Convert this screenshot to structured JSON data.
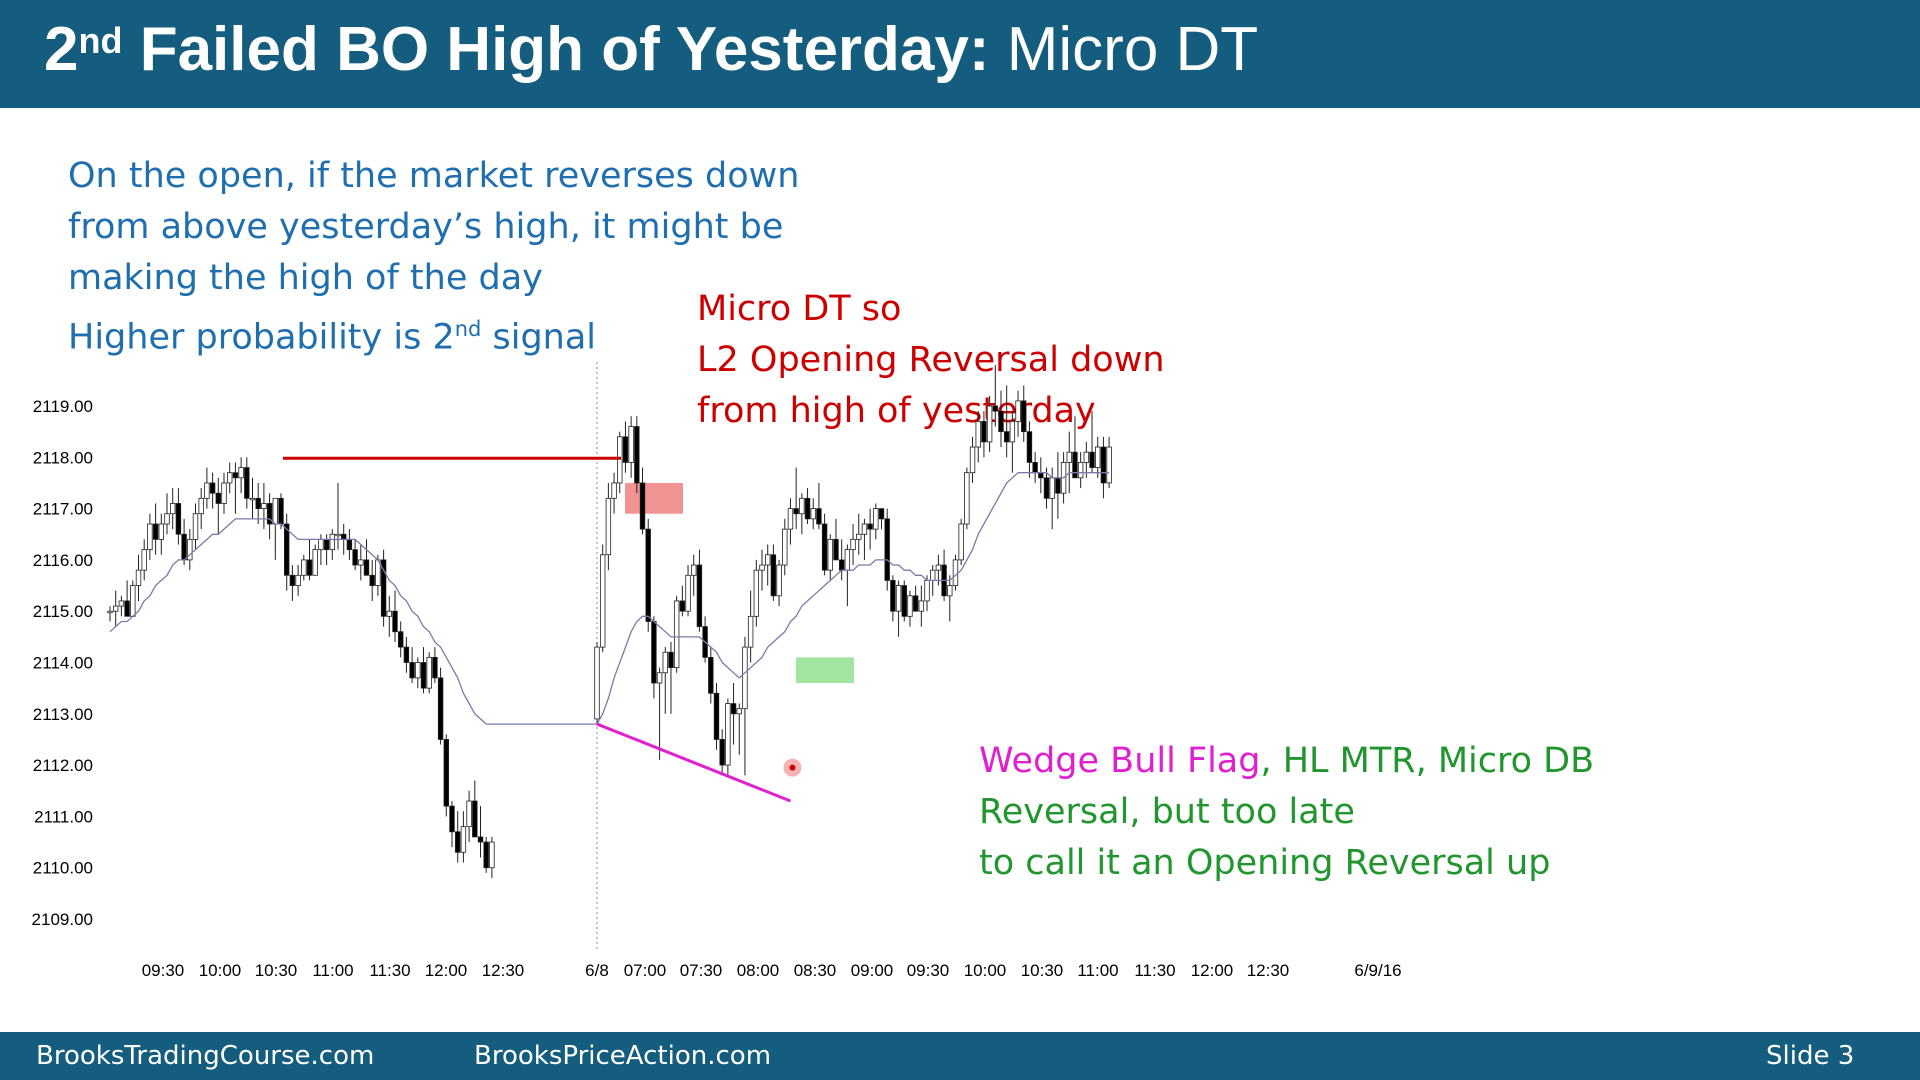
{
  "slide": {
    "title_main": "2",
    "title_sup": "nd",
    "title_bold_rest": " Failed BO High of Yesterday:",
    "title_light": " Micro DT",
    "footer_left": "BrooksTradingCourse.com",
    "footer_center": "BrooksPriceAction.com",
    "footer_right": "Slide  3"
  },
  "notes": {
    "blue": {
      "line1": "On the open, if the market reverses down",
      "line2": "from above yesterday’s high, it might be",
      "line3": "making the high of the day",
      "line4_a": "Higher probability is 2",
      "line4_sup": "nd",
      "line4_b": " signal"
    },
    "red": {
      "line1": "Micro DT so",
      "line2": "L2 Opening Reversal down",
      "line3": "from high of yesterday"
    },
    "green": {
      "part_magenta": "Wedge Bull Flag",
      "part_green": ", HL MTR, Micro DB",
      "line2": "Reversal, but too late",
      "line3": "to call it an Opening Reversal up"
    }
  },
  "colors": {
    "header_bg": "#155d7e",
    "blue_text": "#1f6fb0",
    "red_text": "#cc0000",
    "green_text": "#22962e",
    "magenta": "#e020d0",
    "ema": "#7a7aa8",
    "red_line": "#cc0000",
    "red_box": "#f08080",
    "green_box": "#90e090"
  },
  "chart_data": {
    "type": "candlestick",
    "y_ticks": [
      "2119.00",
      "2118.00",
      "2117.00",
      "2116.00",
      "2115.00",
      "2114.00",
      "2113.00",
      "2112.00",
      "2111.00",
      "2110.00",
      "2109.00"
    ],
    "ylim": [
      2109,
      2119
    ],
    "x_ticks": [
      "09:30",
      "10:00",
      "10:30",
      "11:00",
      "11:30",
      "12:00",
      "12:30",
      "6/8",
      "07:00",
      "07:30",
      "08:00",
      "08:30",
      "09:00",
      "09:30",
      "10:00",
      "10:30",
      "11:00",
      "11:30",
      "12:00",
      "12:30",
      "6/9/16"
    ],
    "yesterday_high": 2118.0,
    "bars": [
      [
        2115.0,
        2115.1,
        2114.8,
        2115.0
      ],
      [
        2115.0,
        2115.4,
        2114.7,
        2115.1
      ],
      [
        2115.1,
        2115.3,
        2114.9,
        2115.2
      ],
      [
        2115.2,
        2115.6,
        2114.9,
        2114.9
      ],
      [
        2114.9,
        2115.6,
        2114.9,
        2115.5
      ],
      [
        2115.5,
        2116.1,
        2115.2,
        2115.8
      ],
      [
        2115.8,
        2116.4,
        2115.6,
        2116.2
      ],
      [
        2116.2,
        2116.9,
        2116.0,
        2116.7
      ],
      [
        2116.7,
        2117.1,
        2116.1,
        2116.4
      ],
      [
        2116.4,
        2116.9,
        2116.1,
        2116.7
      ],
      [
        2116.7,
        2117.3,
        2116.5,
        2116.9
      ],
      [
        2116.9,
        2117.4,
        2116.6,
        2117.1
      ],
      [
        2117.1,
        2117.4,
        2116.3,
        2116.5
      ],
      [
        2116.5,
        2116.8,
        2115.9,
        2116.0
      ],
      [
        2116.0,
        2116.6,
        2115.8,
        2116.4
      ],
      [
        2116.4,
        2117.1,
        2116.2,
        2116.9
      ],
      [
        2116.9,
        2117.4,
        2116.6,
        2117.2
      ],
      [
        2117.2,
        2117.8,
        2117.0,
        2117.5
      ],
      [
        2117.5,
        2117.7,
        2117.0,
        2117.3
      ],
      [
        2117.3,
        2117.6,
        2116.5,
        2117.1
      ],
      [
        2117.1,
        2117.7,
        2116.9,
        2117.5
      ],
      [
        2117.5,
        2117.9,
        2117.3,
        2117.7
      ],
      [
        2117.7,
        2117.9,
        2116.9,
        2117.6
      ],
      [
        2117.6,
        2118.0,
        2117.3,
        2117.8
      ],
      [
        2117.8,
        2118.0,
        2117.0,
        2117.2
      ],
      [
        2117.2,
        2117.6,
        2116.8,
        2117.2
      ],
      [
        2117.2,
        2117.5,
        2116.7,
        2117.0
      ],
      [
        2117.0,
        2117.5,
        2116.6,
        2117.1
      ],
      [
        2117.1,
        2117.3,
        2116.4,
        2116.7
      ],
      [
        2116.7,
        2117.2,
        2116.0,
        2117.2
      ],
      [
        2117.2,
        2117.3,
        2116.6,
        2116.7
      ],
      [
        2116.7,
        2116.9,
        2115.4,
        2115.7
      ],
      [
        2115.7,
        2115.9,
        2115.2,
        2115.5
      ],
      [
        2115.5,
        2115.9,
        2115.3,
        2115.7
      ],
      [
        2115.7,
        2116.1,
        2115.6,
        2116.0
      ],
      [
        2116.0,
        2116.4,
        2115.6,
        2115.7
      ],
      [
        2115.7,
        2116.3,
        2115.7,
        2116.2
      ],
      [
        2116.2,
        2116.5,
        2115.9,
        2116.4
      ],
      [
        2116.4,
        2116.5,
        2115.9,
        2116.2
      ],
      [
        2116.2,
        2116.6,
        2116.0,
        2116.5
      ],
      [
        2116.5,
        2117.5,
        2116.2,
        2116.5
      ],
      [
        2116.5,
        2116.7,
        2116.1,
        2116.4
      ],
      [
        2116.4,
        2116.6,
        2116.0,
        2116.2
      ],
      [
        2116.2,
        2116.4,
        2115.8,
        2115.9
      ],
      [
        2115.9,
        2116.3,
        2115.6,
        2116.0
      ],
      [
        2116.0,
        2116.4,
        2115.7,
        2115.7
      ],
      [
        2115.7,
        2116.0,
        2115.2,
        2115.5
      ],
      [
        2115.5,
        2116.1,
        2115.3,
        2116.0
      ],
      [
        2116.0,
        2116.2,
        2114.7,
        2114.9
      ],
      [
        2114.9,
        2115.3,
        2114.5,
        2115.0
      ],
      [
        2115.0,
        2115.4,
        2114.4,
        2114.6
      ],
      [
        2114.6,
        2114.8,
        2114.1,
        2114.3
      ],
      [
        2114.3,
        2114.5,
        2113.8,
        2114.0
      ],
      [
        2114.0,
        2114.3,
        2113.6,
        2113.7
      ],
      [
        2113.7,
        2114.1,
        2113.5,
        2114.0
      ],
      [
        2114.0,
        2114.3,
        2113.4,
        2113.5
      ],
      [
        2113.5,
        2114.2,
        2113.4,
        2114.1
      ],
      [
        2114.1,
        2114.3,
        2113.6,
        2113.7
      ],
      [
        2113.7,
        2113.9,
        2112.4,
        2112.5
      ],
      [
        2112.5,
        2112.6,
        2111.0,
        2111.2
      ],
      [
        2111.2,
        2111.3,
        2110.4,
        2110.7
      ],
      [
        2110.7,
        2111.1,
        2110.1,
        2110.3
      ],
      [
        2110.3,
        2111.1,
        2110.1,
        2110.8
      ],
      [
        2110.8,
        2111.5,
        2110.5,
        2111.3
      ],
      [
        2111.3,
        2111.7,
        2110.6,
        2110.6
      ],
      [
        2110.6,
        2111.2,
        2110.2,
        2110.5
      ],
      [
        2110.5,
        2110.6,
        2109.9,
        2110.0
      ],
      [
        2110.0,
        2110.6,
        2109.8,
        2110.5
      ],
      [
        2112.9,
        2114.4,
        2112.8,
        2114.3
      ],
      [
        2114.3,
        2116.3,
        2114.2,
        2116.1
      ],
      [
        2116.1,
        2117.5,
        2115.8,
        2117.2
      ],
      [
        2117.2,
        2117.7,
        2116.9,
        2117.5
      ],
      [
        2117.5,
        2118.5,
        2117.3,
        2118.4
      ],
      [
        2118.4,
        2118.7,
        2117.7,
        2117.9
      ],
      [
        2117.9,
        2118.8,
        2117.6,
        2118.6
      ],
      [
        2118.6,
        2118.8,
        2117.3,
        2117.5
      ],
      [
        2117.5,
        2117.8,
        2116.5,
        2116.6
      ],
      [
        2116.6,
        2116.8,
        2114.6,
        2114.8
      ],
      [
        2114.8,
        2114.9,
        2113.3,
        2113.6
      ],
      [
        2113.6,
        2113.9,
        2112.1,
        2113.8
      ],
      [
        2113.8,
        2114.3,
        2113.0,
        2114.2
      ],
      [
        2114.2,
        2114.4,
        2113.0,
        2113.9
      ],
      [
        2113.9,
        2115.3,
        2113.8,
        2115.2
      ],
      [
        2115.2,
        2115.5,
        2114.9,
        2115.0
      ],
      [
        2115.0,
        2115.9,
        2114.9,
        2115.7
      ],
      [
        2115.7,
        2116.1,
        2115.3,
        2115.9
      ],
      [
        2115.9,
        2116.2,
        2114.6,
        2114.7
      ],
      [
        2114.7,
        2114.9,
        2114.0,
        2114.1
      ],
      [
        2114.1,
        2114.3,
        2113.2,
        2113.4
      ],
      [
        2113.4,
        2113.6,
        2112.3,
        2112.5
      ],
      [
        2112.5,
        2112.7,
        2111.8,
        2112.0
      ],
      [
        2112.0,
        2113.3,
        2111.8,
        2113.2
      ],
      [
        2113.2,
        2113.6,
        2112.4,
        2113.0
      ],
      [
        2113.0,
        2113.2,
        2112.2,
        2113.1
      ],
      [
        2113.1,
        2114.5,
        2111.8,
        2114.3
      ],
      [
        2114.3,
        2115.4,
        2114.0,
        2114.9
      ],
      [
        2114.9,
        2116.0,
        2114.7,
        2115.8
      ],
      [
        2115.8,
        2116.2,
        2115.4,
        2115.9
      ],
      [
        2115.9,
        2116.3,
        2115.5,
        2116.1
      ],
      [
        2116.1,
        2116.3,
        2115.2,
        2115.3
      ],
      [
        2115.3,
        2116.0,
        2115.1,
        2115.9
      ],
      [
        2115.9,
        2116.8,
        2115.7,
        2116.6
      ],
      [
        2116.6,
        2117.2,
        2116.3,
        2117.0
      ],
      [
        2117.0,
        2117.8,
        2116.6,
        2116.9
      ],
      [
        2116.9,
        2117.3,
        2116.5,
        2117.2
      ],
      [
        2117.2,
        2117.4,
        2116.7,
        2116.8
      ],
      [
        2116.8,
        2117.2,
        2116.6,
        2117.0
      ],
      [
        2117.0,
        2117.5,
        2116.6,
        2116.7
      ],
      [
        2116.7,
        2116.9,
        2115.7,
        2115.8
      ],
      [
        2115.8,
        2116.5,
        2115.6,
        2116.4
      ],
      [
        2116.4,
        2116.8,
        2116.0,
        2116.0
      ],
      [
        2116.0,
        2116.4,
        2115.6,
        2115.8
      ],
      [
        2115.8,
        2116.3,
        2115.1,
        2116.2
      ],
      [
        2116.2,
        2116.7,
        2115.9,
        2116.4
      ],
      [
        2116.4,
        2116.9,
        2116.1,
        2116.5
      ],
      [
        2116.5,
        2116.8,
        2116.0,
        2116.7
      ],
      [
        2116.7,
        2117.0,
        2116.2,
        2116.6
      ],
      [
        2116.6,
        2117.1,
        2116.4,
        2117.0
      ],
      [
        2117.0,
        2117.0,
        2116.6,
        2116.8
      ],
      [
        2116.8,
        2117.0,
        2115.4,
        2115.6
      ],
      [
        2115.6,
        2115.7,
        2114.8,
        2115.0
      ],
      [
        2115.0,
        2115.6,
        2114.5,
        2115.5
      ],
      [
        2115.5,
        2115.6,
        2114.8,
        2114.9
      ],
      [
        2114.9,
        2115.4,
        2114.7,
        2115.3
      ],
      [
        2115.3,
        2115.5,
        2115.0,
        2115.0
      ],
      [
        2115.0,
        2115.5,
        2114.7,
        2115.2
      ],
      [
        2115.2,
        2115.7,
        2115.0,
        2115.6
      ],
      [
        2115.6,
        2115.9,
        2115.3,
        2115.8
      ],
      [
        2115.8,
        2116.1,
        2115.5,
        2115.9
      ],
      [
        2115.9,
        2116.2,
        2115.2,
        2115.3
      ],
      [
        2115.3,
        2115.7,
        2114.8,
        2115.5
      ],
      [
        2115.5,
        2116.1,
        2115.4,
        2116.0
      ],
      [
        2116.0,
        2116.8,
        2115.9,
        2116.7
      ],
      [
        2116.7,
        2117.8,
        2116.6,
        2117.7
      ],
      [
        2117.7,
        2118.4,
        2117.5,
        2118.2
      ],
      [
        2118.2,
        2118.9,
        2117.9,
        2118.7
      ],
      [
        2118.7,
        2118.9,
        2118.0,
        2118.3
      ],
      [
        2118.3,
        2119.2,
        2118.1,
        2119.0
      ],
      [
        2119.0,
        2119.8,
        2118.6,
        2118.9
      ],
      [
        2118.9,
        2119.3,
        2118.2,
        2118.5
      ],
      [
        2118.5,
        2119.4,
        2118.0,
        2118.3
      ],
      [
        2118.3,
        2118.9,
        2117.7,
        2118.7
      ],
      [
        2118.7,
        2119.3,
        2118.4,
        2119.1
      ],
      [
        2119.1,
        2119.4,
        2118.3,
        2118.5
      ],
      [
        2118.5,
        2118.7,
        2117.6,
        2117.9
      ],
      [
        2117.9,
        2118.1,
        2117.5,
        2117.7
      ],
      [
        2117.7,
        2118.0,
        2117.3,
        2117.6
      ],
      [
        2117.6,
        2117.8,
        2117.0,
        2117.2
      ],
      [
        2117.2,
        2117.8,
        2116.6,
        2117.6
      ],
      [
        2117.6,
        2118.1,
        2116.8,
        2117.3
      ],
      [
        2117.3,
        2118.1,
        2117.1,
        2117.9
      ],
      [
        2117.9,
        2118.5,
        2117.3,
        2118.1
      ],
      [
        2118.1,
        2118.8,
        2117.7,
        2117.6
      ],
      [
        2117.6,
        2118.1,
        2117.4,
        2117.9
      ],
      [
        2117.9,
        2118.3,
        2117.6,
        2118.1
      ],
      [
        2118.1,
        2118.9,
        2117.7,
        2117.8
      ],
      [
        2117.8,
        2118.4,
        2117.6,
        2118.2
      ],
      [
        2118.2,
        2118.4,
        2117.2,
        2117.5
      ],
      [
        2117.5,
        2118.4,
        2117.4,
        2118.2
      ]
    ],
    "ema": [
      2114.6,
      2114.7,
      2114.8,
      2114.8,
      2114.9,
      2115.0,
      2115.2,
      2115.3,
      2115.5,
      2115.6,
      2115.7,
      2115.9,
      2116.0,
      2116.0,
      2116.1,
      2116.2,
      2116.3,
      2116.4,
      2116.5,
      2116.5,
      2116.6,
      2116.7,
      2116.8,
      2116.8,
      2116.8,
      2116.8,
      2116.8,
      2116.8,
      2116.8,
      2116.7,
      2116.7,
      2116.6,
      2116.5,
      2116.4,
      2116.4,
      2116.4,
      2116.4,
      2116.4,
      2116.4,
      2116.4,
      2116.4,
      2116.4,
      2116.4,
      2116.4,
      2116.3,
      2116.2,
      2116.1,
      2116.0,
      2115.8,
      2115.6,
      2115.5,
      2115.3,
      2115.2,
      2115.0,
      2114.9,
      2114.7,
      2114.6,
      2114.4,
      2114.3,
      2114.1,
      2113.9,
      2113.7,
      2113.4,
      2113.2,
      2113.0,
      2112.9,
      2112.8,
      2112.8,
      2112.8,
      2113.0,
      2113.3,
      2113.7,
      2114.0,
      2114.3,
      2114.6,
      2114.8,
      2114.9,
      2114.9,
      2114.8,
      2114.7,
      2114.6,
      2114.5,
      2114.5,
      2114.5,
      2114.5,
      2114.5,
      2114.5,
      2114.4,
      2114.3,
      2114.2,
      2114.0,
      2113.9,
      2113.8,
      2113.7,
      2113.8,
      2113.9,
      2114.0,
      2114.1,
      2114.3,
      2114.4,
      2114.5,
      2114.6,
      2114.8,
      2114.9,
      2115.1,
      2115.2,
      2115.3,
      2115.4,
      2115.5,
      2115.6,
      2115.7,
      2115.8,
      2115.8,
      2115.8,
      2115.9,
      2115.9,
      2115.9,
      2116.0,
      2116.0,
      2116.0,
      2115.9,
      2115.9,
      2115.8,
      2115.8,
      2115.7,
      2115.7,
      2115.6,
      2115.6,
      2115.6,
      2115.6,
      2115.6,
      2115.7,
      2115.8,
      2116.0,
      2116.2,
      2116.5,
      2116.7,
      2116.9,
      2117.1,
      2117.3,
      2117.5,
      2117.6,
      2117.7,
      2117.7,
      2117.7,
      2117.7,
      2117.7,
      2117.7,
      2117.6,
      2117.6,
      2117.6,
      2117.7,
      2117.7,
      2117.7,
      2117.7,
      2117.7,
      2117.7,
      2117.7,
      2117.7
    ],
    "annotations": {
      "wedge_line": [
        [
          2112.8,
          68
        ],
        [
          2111.3,
          102
        ]
      ],
      "red_box_price": [
        2116.9,
        2117.5
      ],
      "green_box_price": [
        2113.6,
        2114.1
      ],
      "signal_dot": [
        2111.95,
        102
      ]
    }
  }
}
